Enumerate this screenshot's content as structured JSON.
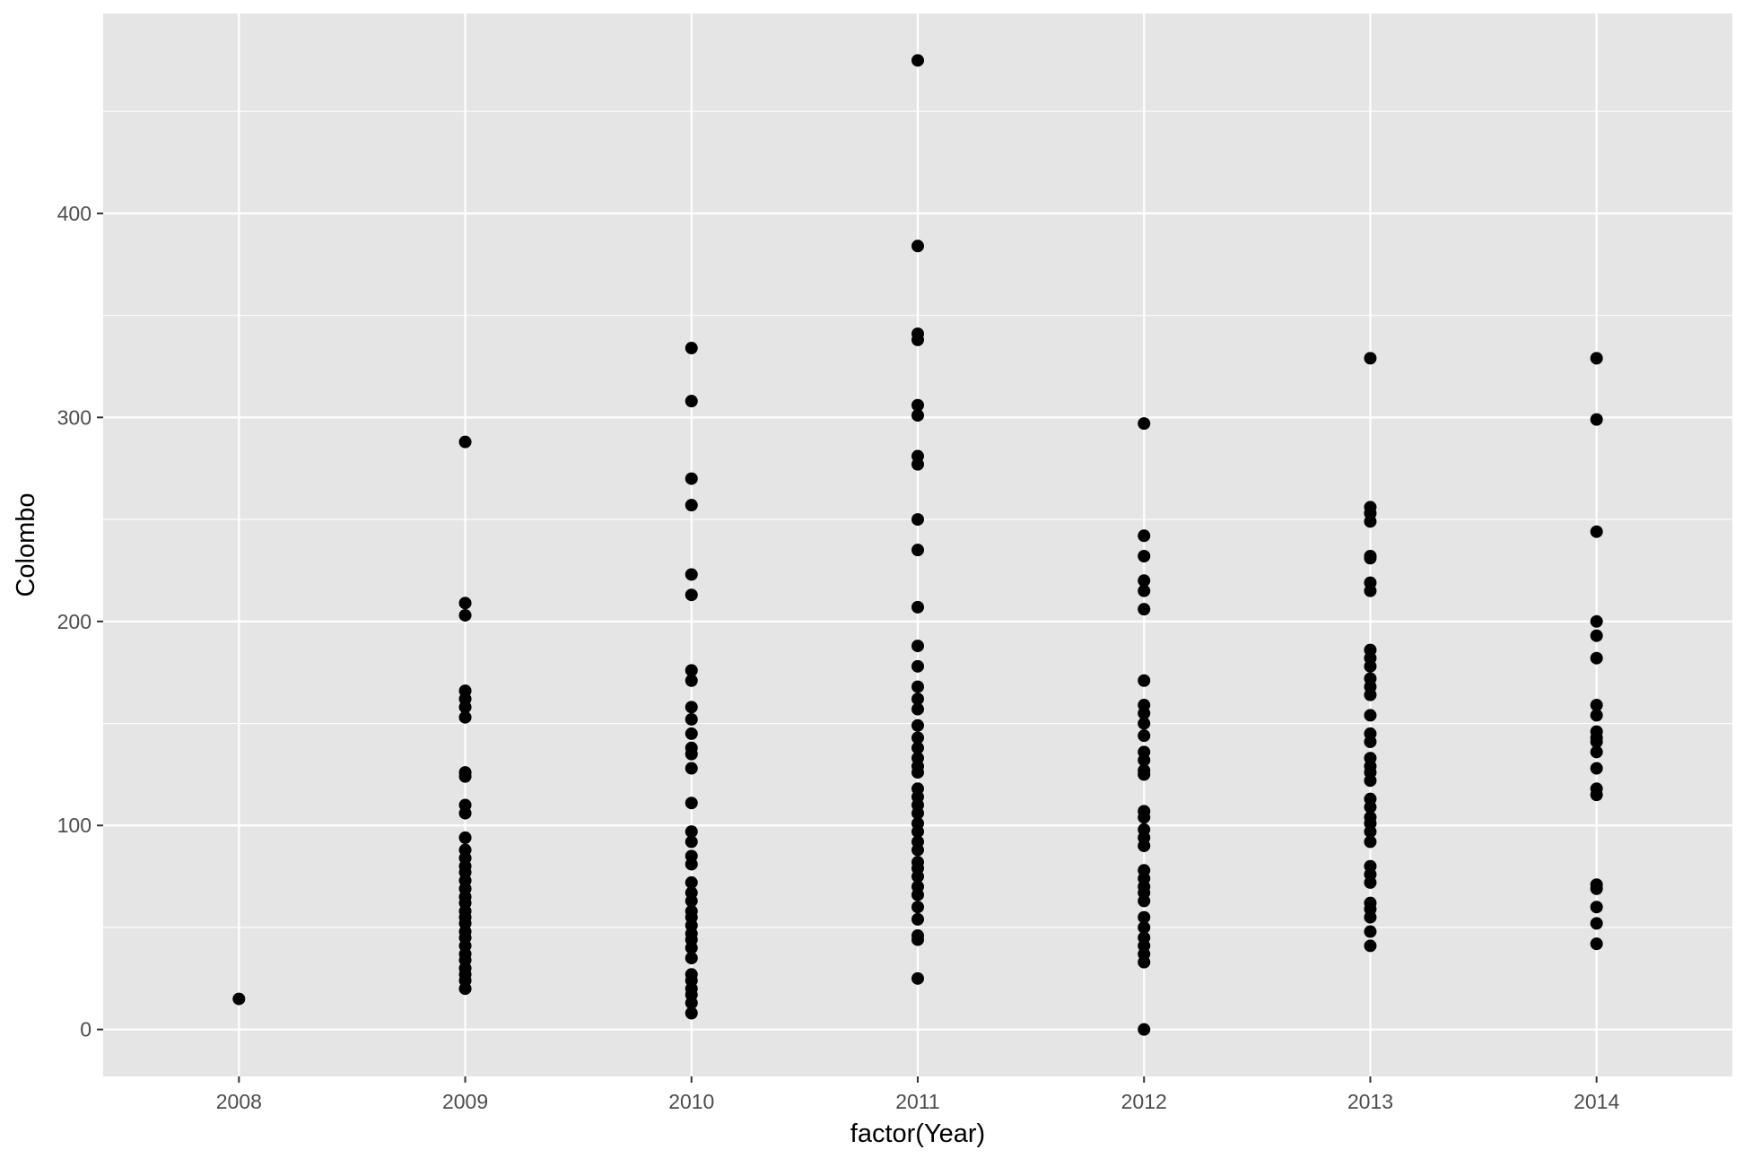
{
  "chart_data": {
    "type": "scatter",
    "title": "",
    "xlabel": "factor(Year)",
    "ylabel": "Colombo",
    "x_categories": [
      "2008",
      "2009",
      "2010",
      "2011",
      "2012",
      "2013",
      "2014"
    ],
    "y_ticks": [
      0,
      100,
      200,
      300,
      400
    ],
    "ylim": [
      -23,
      498
    ],
    "grid": true,
    "legend": "none",
    "colors": {
      "panel_background": "#e5e5e5",
      "grid_line": "#ffffff",
      "point": "#000000"
    },
    "points": [
      {
        "x": "2008",
        "y": 15
      },
      {
        "x": "2009",
        "y": 288
      },
      {
        "x": "2009",
        "y": 209
      },
      {
        "x": "2009",
        "y": 203
      },
      {
        "x": "2009",
        "y": 166
      },
      {
        "x": "2009",
        "y": 162
      },
      {
        "x": "2009",
        "y": 158
      },
      {
        "x": "2009",
        "y": 153
      },
      {
        "x": "2009",
        "y": 126
      },
      {
        "x": "2009",
        "y": 124
      },
      {
        "x": "2009",
        "y": 110
      },
      {
        "x": "2009",
        "y": 106
      },
      {
        "x": "2009",
        "y": 94
      },
      {
        "x": "2009",
        "y": 88
      },
      {
        "x": "2009",
        "y": 84
      },
      {
        "x": "2009",
        "y": 80
      },
      {
        "x": "2009",
        "y": 77
      },
      {
        "x": "2009",
        "y": 73
      },
      {
        "x": "2009",
        "y": 69
      },
      {
        "x": "2009",
        "y": 65
      },
      {
        "x": "2009",
        "y": 62
      },
      {
        "x": "2009",
        "y": 58
      },
      {
        "x": "2009",
        "y": 55
      },
      {
        "x": "2009",
        "y": 52
      },
      {
        "x": "2009",
        "y": 48
      },
      {
        "x": "2009",
        "y": 45
      },
      {
        "x": "2009",
        "y": 41
      },
      {
        "x": "2009",
        "y": 37
      },
      {
        "x": "2009",
        "y": 34
      },
      {
        "x": "2009",
        "y": 30
      },
      {
        "x": "2009",
        "y": 27
      },
      {
        "x": "2009",
        "y": 24
      },
      {
        "x": "2009",
        "y": 20
      },
      {
        "x": "2010",
        "y": 334
      },
      {
        "x": "2010",
        "y": 308
      },
      {
        "x": "2010",
        "y": 270
      },
      {
        "x": "2010",
        "y": 257
      },
      {
        "x": "2010",
        "y": 223
      },
      {
        "x": "2010",
        "y": 213
      },
      {
        "x": "2010",
        "y": 176
      },
      {
        "x": "2010",
        "y": 171
      },
      {
        "x": "2010",
        "y": 158
      },
      {
        "x": "2010",
        "y": 152
      },
      {
        "x": "2010",
        "y": 145
      },
      {
        "x": "2010",
        "y": 138
      },
      {
        "x": "2010",
        "y": 135
      },
      {
        "x": "2010",
        "y": 128
      },
      {
        "x": "2010",
        "y": 111
      },
      {
        "x": "2010",
        "y": 97
      },
      {
        "x": "2010",
        "y": 92
      },
      {
        "x": "2010",
        "y": 85
      },
      {
        "x": "2010",
        "y": 81
      },
      {
        "x": "2010",
        "y": 72
      },
      {
        "x": "2010",
        "y": 67
      },
      {
        "x": "2010",
        "y": 63
      },
      {
        "x": "2010",
        "y": 58
      },
      {
        "x": "2010",
        "y": 55
      },
      {
        "x": "2010",
        "y": 51
      },
      {
        "x": "2010",
        "y": 47
      },
      {
        "x": "2010",
        "y": 44
      },
      {
        "x": "2010",
        "y": 40
      },
      {
        "x": "2010",
        "y": 35
      },
      {
        "x": "2010",
        "y": 27
      },
      {
        "x": "2010",
        "y": 24
      },
      {
        "x": "2010",
        "y": 20
      },
      {
        "x": "2010",
        "y": 17
      },
      {
        "x": "2010",
        "y": 13
      },
      {
        "x": "2010",
        "y": 8
      },
      {
        "x": "2011",
        "y": 475
      },
      {
        "x": "2011",
        "y": 384
      },
      {
        "x": "2011",
        "y": 341
      },
      {
        "x": "2011",
        "y": 338
      },
      {
        "x": "2011",
        "y": 306
      },
      {
        "x": "2011",
        "y": 301
      },
      {
        "x": "2011",
        "y": 281
      },
      {
        "x": "2011",
        "y": 277
      },
      {
        "x": "2011",
        "y": 250
      },
      {
        "x": "2011",
        "y": 235
      },
      {
        "x": "2011",
        "y": 207
      },
      {
        "x": "2011",
        "y": 188
      },
      {
        "x": "2011",
        "y": 178
      },
      {
        "x": "2011",
        "y": 168
      },
      {
        "x": "2011",
        "y": 162
      },
      {
        "x": "2011",
        "y": 157
      },
      {
        "x": "2011",
        "y": 149
      },
      {
        "x": "2011",
        "y": 143
      },
      {
        "x": "2011",
        "y": 138
      },
      {
        "x": "2011",
        "y": 133
      },
      {
        "x": "2011",
        "y": 129
      },
      {
        "x": "2011",
        "y": 126
      },
      {
        "x": "2011",
        "y": 118
      },
      {
        "x": "2011",
        "y": 114
      },
      {
        "x": "2011",
        "y": 110
      },
      {
        "x": "2011",
        "y": 106
      },
      {
        "x": "2011",
        "y": 101
      },
      {
        "x": "2011",
        "y": 97
      },
      {
        "x": "2011",
        "y": 92
      },
      {
        "x": "2011",
        "y": 88
      },
      {
        "x": "2011",
        "y": 82
      },
      {
        "x": "2011",
        "y": 79
      },
      {
        "x": "2011",
        "y": 75
      },
      {
        "x": "2011",
        "y": 70
      },
      {
        "x": "2011",
        "y": 66
      },
      {
        "x": "2011",
        "y": 60
      },
      {
        "x": "2011",
        "y": 54
      },
      {
        "x": "2011",
        "y": 46
      },
      {
        "x": "2011",
        "y": 44
      },
      {
        "x": "2011",
        "y": 25
      },
      {
        "x": "2012",
        "y": 297
      },
      {
        "x": "2012",
        "y": 242
      },
      {
        "x": "2012",
        "y": 232
      },
      {
        "x": "2012",
        "y": 220
      },
      {
        "x": "2012",
        "y": 215
      },
      {
        "x": "2012",
        "y": 206
      },
      {
        "x": "2012",
        "y": 171
      },
      {
        "x": "2012",
        "y": 159
      },
      {
        "x": "2012",
        "y": 155
      },
      {
        "x": "2012",
        "y": 150
      },
      {
        "x": "2012",
        "y": 144
      },
      {
        "x": "2012",
        "y": 136
      },
      {
        "x": "2012",
        "y": 132
      },
      {
        "x": "2012",
        "y": 127
      },
      {
        "x": "2012",
        "y": 125
      },
      {
        "x": "2012",
        "y": 107
      },
      {
        "x": "2012",
        "y": 104
      },
      {
        "x": "2012",
        "y": 98
      },
      {
        "x": "2012",
        "y": 94
      },
      {
        "x": "2012",
        "y": 90
      },
      {
        "x": "2012",
        "y": 78
      },
      {
        "x": "2012",
        "y": 74
      },
      {
        "x": "2012",
        "y": 70
      },
      {
        "x": "2012",
        "y": 67
      },
      {
        "x": "2012",
        "y": 63
      },
      {
        "x": "2012",
        "y": 55
      },
      {
        "x": "2012",
        "y": 50
      },
      {
        "x": "2012",
        "y": 45
      },
      {
        "x": "2012",
        "y": 41
      },
      {
        "x": "2012",
        "y": 37
      },
      {
        "x": "2012",
        "y": 33
      },
      {
        "x": "2012",
        "y": 0
      },
      {
        "x": "2013",
        "y": 329
      },
      {
        "x": "2013",
        "y": 256
      },
      {
        "x": "2013",
        "y": 253
      },
      {
        "x": "2013",
        "y": 249
      },
      {
        "x": "2013",
        "y": 232
      },
      {
        "x": "2013",
        "y": 231
      },
      {
        "x": "2013",
        "y": 219
      },
      {
        "x": "2013",
        "y": 215
      },
      {
        "x": "2013",
        "y": 186
      },
      {
        "x": "2013",
        "y": 182
      },
      {
        "x": "2013",
        "y": 178
      },
      {
        "x": "2013",
        "y": 172
      },
      {
        "x": "2013",
        "y": 168
      },
      {
        "x": "2013",
        "y": 164
      },
      {
        "x": "2013",
        "y": 154
      },
      {
        "x": "2013",
        "y": 145
      },
      {
        "x": "2013",
        "y": 141
      },
      {
        "x": "2013",
        "y": 133
      },
      {
        "x": "2013",
        "y": 129
      },
      {
        "x": "2013",
        "y": 126
      },
      {
        "x": "2013",
        "y": 122
      },
      {
        "x": "2013",
        "y": 113
      },
      {
        "x": "2013",
        "y": 109
      },
      {
        "x": "2013",
        "y": 104
      },
      {
        "x": "2013",
        "y": 101
      },
      {
        "x": "2013",
        "y": 97
      },
      {
        "x": "2013",
        "y": 92
      },
      {
        "x": "2013",
        "y": 80
      },
      {
        "x": "2013",
        "y": 76
      },
      {
        "x": "2013",
        "y": 72
      },
      {
        "x": "2013",
        "y": 62
      },
      {
        "x": "2013",
        "y": 59
      },
      {
        "x": "2013",
        "y": 55
      },
      {
        "x": "2013",
        "y": 48
      },
      {
        "x": "2013",
        "y": 41
      },
      {
        "x": "2014",
        "y": 329
      },
      {
        "x": "2014",
        "y": 299
      },
      {
        "x": "2014",
        "y": 244
      },
      {
        "x": "2014",
        "y": 200
      },
      {
        "x": "2014",
        "y": 193
      },
      {
        "x": "2014",
        "y": 182
      },
      {
        "x": "2014",
        "y": 159
      },
      {
        "x": "2014",
        "y": 154
      },
      {
        "x": "2014",
        "y": 146
      },
      {
        "x": "2014",
        "y": 143
      },
      {
        "x": "2014",
        "y": 141
      },
      {
        "x": "2014",
        "y": 136
      },
      {
        "x": "2014",
        "y": 128
      },
      {
        "x": "2014",
        "y": 118
      },
      {
        "x": "2014",
        "y": 115
      },
      {
        "x": "2014",
        "y": 71
      },
      {
        "x": "2014",
        "y": 69
      },
      {
        "x": "2014",
        "y": 60
      },
      {
        "x": "2014",
        "y": 52
      },
      {
        "x": "2014",
        "y": 42
      }
    ]
  }
}
